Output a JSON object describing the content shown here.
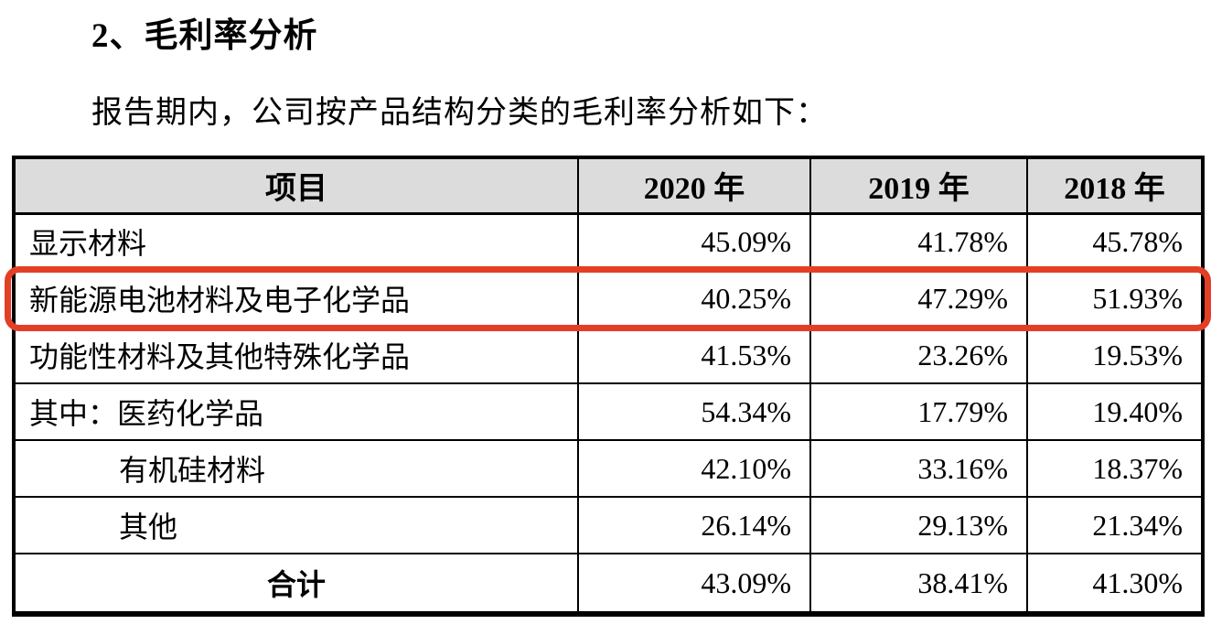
{
  "document": {
    "section_title": "2、毛利率分析",
    "intro_text": "报告期内，公司按产品结构分类的毛利率分析如下："
  },
  "table": {
    "columns": [
      "项目",
      "2020 年",
      "2019 年",
      "2018 年"
    ],
    "rows": [
      {
        "label": "显示材料",
        "values": [
          "45.09%",
          "41.78%",
          "45.78%"
        ],
        "indent": false,
        "is_total": false,
        "highlighted": false
      },
      {
        "label": "新能源电池材料及电子化学品",
        "values": [
          "40.25%",
          "47.29%",
          "51.93%"
        ],
        "indent": false,
        "is_total": false,
        "highlighted": true
      },
      {
        "label": "功能性材料及其他特殊化学品",
        "values": [
          "41.53%",
          "23.26%",
          "19.53%"
        ],
        "indent": false,
        "is_total": false,
        "highlighted": false
      },
      {
        "label": "其中：医药化学品",
        "values": [
          "54.34%",
          "17.79%",
          "19.40%"
        ],
        "indent": false,
        "is_total": false,
        "highlighted": false
      },
      {
        "label": "有机硅材料",
        "values": [
          "42.10%",
          "33.16%",
          "18.37%"
        ],
        "indent": true,
        "is_total": false,
        "highlighted": false
      },
      {
        "label": "其他",
        "values": [
          "26.14%",
          "29.13%",
          "21.34%"
        ],
        "indent": true,
        "is_total": false,
        "highlighted": false
      },
      {
        "label": "合计",
        "values": [
          "43.09%",
          "38.41%",
          "41.30%"
        ],
        "indent": false,
        "is_total": true,
        "highlighted": false
      }
    ],
    "colors": {
      "header_background": "#dcdcdc",
      "highlight_border": "#e23f26",
      "table_border": "#000000"
    }
  }
}
